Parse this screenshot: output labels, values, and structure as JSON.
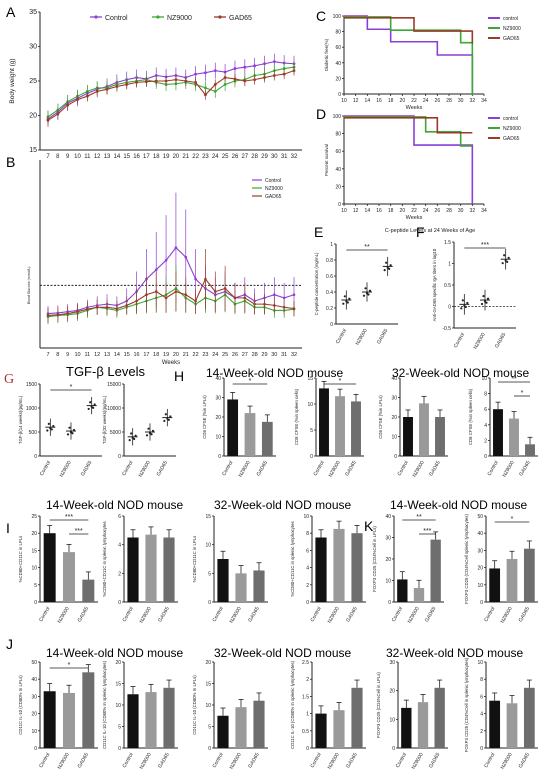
{
  "panel_letters": [
    "A",
    "B",
    "C",
    "D",
    "E",
    "F",
    "G",
    "H",
    "I",
    "K",
    "J"
  ],
  "section_titles": {
    "g": "TGF-β Levels",
    "h14": "14-Week-old NOD mouse",
    "h32": "32-Week-old NOD mouse",
    "i14": "14-Week-old NOD mouse",
    "i32": "32-Week-old NOD mouse",
    "k14": "14-Week-old NOD mouse",
    "j14": "14-Week-old NOD mouse",
    "j32": "32-Week-old NOD mouse",
    "k32": "32-Week-old NOD mouse"
  },
  "colors": {
    "control": "#8b3fd6",
    "nz9000": "#3aa832",
    "gad65": "#9a3b2a",
    "bar_control": "#111111",
    "bar_nz": "#9a9a9a",
    "bar_gad": "#6e6e6e"
  },
  "chart_data": [
    {
      "id": "A",
      "type": "line",
      "ylabel": "Body weight (g)",
      "ylim": [
        15,
        35
      ],
      "yticks": [
        15,
        20,
        25,
        30,
        35
      ],
      "x": [
        7,
        8,
        9,
        10,
        11,
        12,
        13,
        14,
        15,
        16,
        17,
        18,
        19,
        20,
        21,
        22,
        23,
        24,
        25,
        26,
        27,
        28,
        29,
        30,
        31,
        32
      ],
      "series": [
        {
          "name": "Control",
          "values": [
            19.5,
            20.5,
            21.8,
            22.5,
            23.2,
            23.8,
            24.2,
            24.8,
            25.2,
            25.5,
            25.3,
            25.8,
            25.6,
            25.8,
            25.5,
            26.0,
            26.2,
            26.5,
            26.3,
            26.8,
            27.0,
            27.2,
            27.5,
            27.8,
            27.6,
            27.5
          ]
        },
        {
          "name": "NZ9000",
          "values": [
            19.8,
            20.8,
            22.0,
            22.8,
            23.5,
            24.0,
            24.0,
            24.5,
            24.8,
            25.0,
            25.2,
            24.8,
            24.5,
            24.6,
            24.8,
            24.5,
            24.0,
            23.5,
            24.5,
            25.0,
            25.2,
            25.8,
            26.0,
            26.5,
            26.8,
            27.0
          ]
        },
        {
          "name": "GAD65",
          "values": [
            19.3,
            20.2,
            21.5,
            22.3,
            22.8,
            23.5,
            23.8,
            24.2,
            24.5,
            24.8,
            24.9,
            25.0,
            25.0,
            25.2,
            25.0,
            24.8,
            23.0,
            24.5,
            25.5,
            25.3,
            25.0,
            25.2,
            25.5,
            25.8,
            26.0,
            26.5
          ]
        }
      ],
      "legend": [
        "Control",
        "NZ9000",
        "GAD65"
      ]
    },
    {
      "id": "B",
      "type": "line",
      "ylabel": "Blood Glucose (mmol/L)",
      "xlabel": "Weeks",
      "x": [
        7,
        8,
        9,
        10,
        11,
        12,
        13,
        14,
        15,
        16,
        17,
        18,
        19,
        20,
        21,
        22,
        23,
        24,
        25,
        26,
        27,
        28,
        29,
        30,
        31,
        32
      ],
      "series": [
        {
          "name": "Control",
          "values": [
            5.5,
            5.6,
            5.8,
            6.0,
            6.5,
            6.8,
            7.0,
            6.8,
            7.5,
            9.0,
            11.0,
            12.5,
            14.0,
            16.0,
            14.5,
            11.0,
            9.5,
            8.5,
            9.0,
            8.0,
            8.5,
            7.5,
            8.0,
            8.5,
            8.0,
            8.5
          ]
        },
        {
          "name": "NZ9000",
          "values": [
            5.0,
            5.2,
            5.3,
            5.5,
            6.0,
            6.5,
            6.3,
            6.0,
            6.5,
            7.0,
            7.5,
            8.0,
            8.5,
            9.5,
            8.0,
            7.0,
            8.0,
            7.5,
            8.5,
            7.0,
            7.5,
            6.5,
            6.5,
            6.0,
            6.0,
            6.2
          ]
        },
        {
          "name": "GAD65",
          "values": [
            5.2,
            5.3,
            5.5,
            5.8,
            6.2,
            6.5,
            6.5,
            6.3,
            6.8,
            7.5,
            8.5,
            9.0,
            8.0,
            9.0,
            8.5,
            7.5,
            11.0,
            9.0,
            9.5,
            8.0,
            8.0,
            7.0,
            7.0,
            6.8,
            6.5,
            6.3
          ]
        }
      ],
      "reference_line": 10,
      "legend": [
        "Control",
        "NZ9000",
        "GAD65"
      ]
    },
    {
      "id": "C",
      "type": "line",
      "ylabel": "Diabetic free(%)",
      "xlabel": "Weeks",
      "ylim": [
        0,
        100
      ],
      "yticks": [
        0,
        20,
        40,
        60,
        80,
        100
      ],
      "xticks": [
        10,
        12,
        14,
        16,
        18,
        20,
        22,
        24,
        26,
        28,
        30,
        32,
        34
      ],
      "series": [
        {
          "name": "control",
          "steps": [
            [
              10,
              100
            ],
            [
              14,
              100
            ],
            [
              14,
              83
            ],
            [
              18,
              83
            ],
            [
              18,
              67
            ],
            [
              26,
              67
            ],
            [
              26,
              50
            ],
            [
              32,
              50
            ],
            [
              32,
              0
            ]
          ]
        },
        {
          "name": "NZ9000",
          "steps": [
            [
              10,
              100
            ],
            [
              18,
              100
            ],
            [
              18,
              83
            ],
            [
              30,
              83
            ],
            [
              30,
              67
            ],
            [
              32,
              67
            ],
            [
              32,
              0
            ]
          ]
        },
        {
          "name": "GAD65",
          "steps": [
            [
              10,
              100
            ],
            [
              22,
              100
            ],
            [
              22,
              83
            ],
            [
              32,
              83
            ],
            [
              32,
              67
            ]
          ]
        }
      ],
      "legend": [
        "control",
        "NZ9000",
        "GAD65"
      ]
    },
    {
      "id": "D",
      "type": "line",
      "ylabel": "Percent survival",
      "xlabel": "Weeks",
      "ylim": [
        0,
        100
      ],
      "yticks": [
        0,
        20,
        40,
        60,
        80,
        100
      ],
      "xticks": [
        10,
        12,
        14,
        16,
        18,
        20,
        22,
        24,
        26,
        28,
        30,
        32,
        34
      ],
      "series": [
        {
          "name": "control",
          "steps": [
            [
              10,
              100
            ],
            [
              22,
              100
            ],
            [
              22,
              67
            ],
            [
              32,
              67
            ],
            [
              32,
              0
            ]
          ]
        },
        {
          "name": "NZ9000",
          "steps": [
            [
              10,
              100
            ],
            [
              24,
              100
            ],
            [
              24,
              83
            ],
            [
              30,
              83
            ],
            [
              30,
              67
            ],
            [
              32,
              67
            ]
          ]
        },
        {
          "name": "GAD65",
          "steps": [
            [
              10,
              100
            ],
            [
              26,
              100
            ],
            [
              26,
              83
            ],
            [
              32,
              83
            ]
          ]
        }
      ],
      "legend": [
        "control",
        "NZ9000",
        "GAD65"
      ]
    },
    {
      "id": "E",
      "type": "scatter",
      "title": "C-peptide Levels at 24 Weeks of Age",
      "ylabel": "C-peptide concentration (mg/mL)",
      "categories": [
        "Control",
        "NZ9000",
        "GAD65"
      ],
      "values": [
        0.3,
        0.4,
        0.72
      ],
      "ylim": [
        0.0,
        1.0
      ],
      "yticks": [
        0.0,
        0.2,
        0.4,
        0.6,
        0.8,
        1.0
      ],
      "significance": "**"
    },
    {
      "id": "F",
      "type": "scatter",
      "ylabel": "Anti-GAD65 specific IgA titers in log10",
      "categories": [
        "Control",
        "NZ9000",
        "GAD65"
      ],
      "values": [
        0.05,
        0.15,
        1.1
      ],
      "ylim": [
        -0.5,
        1.5
      ],
      "yticks": [
        -0.5,
        0.0,
        0.5,
        1.0,
        1.5
      ],
      "significance": "***"
    },
    {
      "id": "G1",
      "type": "scatter",
      "ylabel": "TGF-β(14 weeks)(pg/mL)",
      "categories": [
        "Control",
        "NZ9000",
        "GAD65"
      ],
      "values": [
        600,
        520,
        1050
      ],
      "ylim": [
        0,
        1500
      ],
      "yticks": [
        0,
        500,
        1000,
        1500
      ],
      "significance": "*"
    },
    {
      "id": "G2",
      "type": "scatter",
      "ylabel": "TGF-β(32 weeks)(pg/mL)",
      "categories": [
        "Control",
        "NZ9000",
        "GAD65"
      ],
      "values": [
        4000,
        5000,
        8000
      ],
      "ylim": [
        0,
        15000
      ],
      "yticks": [
        0,
        5000,
        10000,
        15000
      ]
    },
    {
      "id": "H1",
      "type": "bar",
      "ylabel": "CD8 CFSE (%in LPLs)",
      "categories": [
        "Control",
        "NZ9000",
        "GAD65"
      ],
      "values": [
        29,
        22,
        17.5
      ],
      "ylim": [
        0,
        40
      ],
      "yticks": [
        0,
        10,
        20,
        30,
        40
      ],
      "significance": "*"
    },
    {
      "id": "H2",
      "type": "bar",
      "ylabel": "CD8 CFSE (%in spleen cells)",
      "categories": [
        "Control",
        "NZ9000",
        "GAD65"
      ],
      "values": [
        13,
        11.5,
        10.5
      ],
      "ylim": [
        0,
        15
      ],
      "yticks": [
        0,
        5,
        10,
        15
      ],
      "significance": "*"
    },
    {
      "id": "H3",
      "type": "bar",
      "ylabel": "CD8 CFSE (%in LPLs)",
      "categories": [
        "Control",
        "NZ9000",
        "GAD65"
      ],
      "values": [
        20,
        27,
        20
      ],
      "ylim": [
        0,
        40
      ],
      "yticks": [
        0,
        10,
        20,
        30,
        40
      ]
    },
    {
      "id": "H4",
      "type": "bar",
      "ylabel": "CD8 CFSE (%in spleen cells)",
      "categories": [
        "Control",
        "NZ9000",
        "GAD65"
      ],
      "values": [
        6,
        4.8,
        1.5
      ],
      "ylim": [
        0,
        10
      ],
      "yticks": [
        0,
        2,
        4,
        6,
        8,
        10
      ],
      "significance": [
        "**",
        "*"
      ]
    },
    {
      "id": "I1",
      "type": "bar",
      "ylabel": "%CD80+CD11C in LPLs",
      "categories": [
        "Control",
        "NZ9000",
        "GAD65"
      ],
      "values": [
        20,
        14.5,
        6.5
      ],
      "ylim": [
        0,
        25
      ],
      "yticks": [
        0,
        5,
        10,
        15,
        20,
        25
      ],
      "significance": [
        "***",
        "***"
      ]
    },
    {
      "id": "I2",
      "type": "bar",
      "ylabel": "%CD80+CD11C in splenic lymphocytes",
      "categories": [
        "Control",
        "NZ9000",
        "GAD65"
      ],
      "values": [
        4.5,
        4.7,
        4.5
      ],
      "ylim": [
        0,
        6
      ],
      "yticks": [
        0,
        2,
        4,
        6
      ]
    },
    {
      "id": "I3",
      "type": "bar",
      "ylabel": "%CD80+CD11C in LPLs",
      "categories": [
        "Control",
        "NZ9000",
        "GAD65"
      ],
      "values": [
        7.5,
        5,
        5.5
      ],
      "ylim": [
        0,
        15
      ],
      "yticks": [
        0,
        5,
        10,
        15
      ]
    },
    {
      "id": "I4",
      "type": "bar",
      "ylabel": "%CD80+CD11C in splenic lymphocytes",
      "categories": [
        "Control",
        "NZ9000",
        "GAD65"
      ],
      "values": [
        7.5,
        8.5,
        8
      ],
      "ylim": [
        0,
        10
      ],
      "yticks": [
        0,
        2,
        4,
        6,
        8,
        10
      ]
    },
    {
      "id": "K1",
      "type": "bar",
      "ylabel": "FOXP3 CD25 (CD4%Cell in LPLs)",
      "categories": [
        "Control",
        "NZ9000",
        "GAD65"
      ],
      "values": [
        10.5,
        6.5,
        29
      ],
      "ylim": [
        0,
        40
      ],
      "yticks": [
        0,
        10,
        20,
        30,
        40
      ],
      "significance": [
        "**",
        "***"
      ]
    },
    {
      "id": "K2",
      "type": "bar",
      "ylabel": "FOXP3 CD25 (CD4%Cell splenic lymphocytes)",
      "categories": [
        "Control",
        "NZ9000",
        "GAD65"
      ],
      "values": [
        19.5,
        25,
        31
      ],
      "ylim": [
        0,
        50
      ],
      "yticks": [
        0,
        10,
        20,
        30,
        40,
        50
      ],
      "significance": "*"
    },
    {
      "id": "J1",
      "type": "bar",
      "ylabel": "CD11C IL-10 (CD80% In LPLs)",
      "categories": [
        "Control",
        "NZ9000",
        "GAD65"
      ],
      "values": [
        33,
        32,
        44
      ],
      "ylim": [
        0,
        50
      ],
      "yticks": [
        0,
        10,
        20,
        30,
        40,
        50
      ],
      "significance": "*"
    },
    {
      "id": "J2",
      "type": "bar",
      "ylabel": "CD11C IL-10 (CD80% In splenic lymphocytes)",
      "categories": [
        "Control",
        "NZ9000",
        "GAD65"
      ],
      "values": [
        12.5,
        13,
        14
      ],
      "ylim": [
        0,
        20
      ],
      "yticks": [
        0,
        5,
        10,
        15,
        20
      ]
    },
    {
      "id": "J3",
      "type": "bar",
      "ylabel": "CD11C IL-10 (CD80% In LPLs)",
      "categories": [
        "Control",
        "NZ9000",
        "GAD65"
      ],
      "values": [
        7.5,
        9.5,
        11
      ],
      "ylim": [
        0,
        20
      ],
      "yticks": [
        0,
        5,
        10,
        15,
        20
      ]
    },
    {
      "id": "J4",
      "type": "bar",
      "ylabel": "CD11C IL-10 (CD80% In splenic lymphocytes)",
      "categories": [
        "Control",
        "NZ9000",
        "GAD65"
      ],
      "values": [
        1.0,
        1.1,
        1.75
      ],
      "ylim": [
        0,
        2.5
      ],
      "yticks": [
        0.0,
        0.5,
        1.0,
        1.5,
        2.0,
        2.5
      ]
    },
    {
      "id": "K3",
      "type": "bar",
      "ylabel": "FOXP3 CD25 (CD4%Cell in LPLs)",
      "categories": [
        "Control",
        "NZ9000",
        "GAD65"
      ],
      "values": [
        14,
        16,
        21
      ],
      "ylim": [
        0,
        30
      ],
      "yticks": [
        0,
        10,
        20,
        30
      ]
    },
    {
      "id": "K4",
      "type": "bar",
      "ylabel": "FOXP3 CD25 (CD4%Cell in splenic lymphocytes)",
      "categories": [
        "Control",
        "NZ9000",
        "GAD65"
      ],
      "values": [
        5.5,
        5.2,
        7
      ],
      "ylim": [
        0,
        10
      ],
      "yticks": [
        0,
        2,
        4,
        6,
        8,
        10
      ]
    }
  ]
}
